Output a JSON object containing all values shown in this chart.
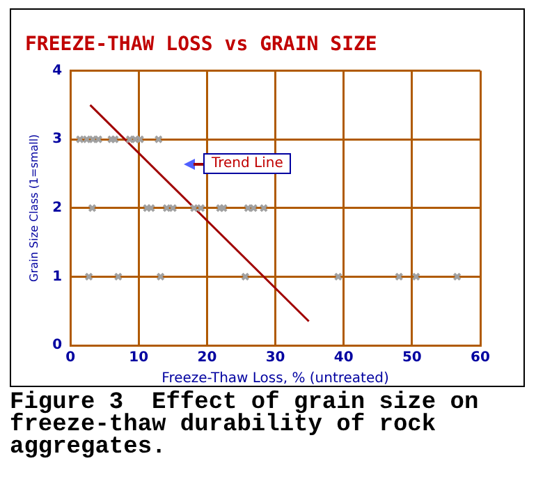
{
  "chart_data": {
    "type": "scatter",
    "title": "FREEZE-THAW LOSS vs GRAIN SIZE",
    "xlabel": "Freeze-Thaw Loss, % (untreated)",
    "ylabel": "Grain Size Class (1=small)",
    "series": [
      {
        "color": "#a0a0a0",
        "marker": "cross",
        "x": [
          1.4,
          2.4,
          3.3,
          4.1,
          6.0,
          6.5,
          8.7,
          9.5,
          10.2,
          12.9,
          3.2,
          11.2,
          11.8,
          14.1,
          15.0,
          18.1,
          19.1,
          21.9,
          22.4,
          26.0,
          26.8,
          28.3,
          2.7,
          7.0,
          13.2,
          25.6,
          39.2,
          48.1,
          50.6,
          56.6
        ],
        "values": [
          3,
          3,
          3,
          3,
          3,
          3,
          3,
          3,
          3,
          3,
          2,
          2,
          2,
          2,
          2,
          2,
          2,
          2,
          2,
          2,
          2,
          2,
          1,
          1,
          1,
          1,
          1,
          1,
          1,
          1
        ]
      },
      {
        "type": "line",
        "color": "#a00000",
        "marker": "none",
        "x": [
          2.9,
          34.9
        ],
        "values": [
          3.5,
          0.35
        ]
      }
    ],
    "xlim": [
      0,
      60
    ],
    "xticks": [
      0,
      10,
      20,
      30,
      40,
      50,
      60
    ],
    "ylim": [
      0,
      4
    ],
    "yticks": [
      0,
      1,
      2,
      3,
      4
    ],
    "grid": true,
    "legend": false,
    "annotations": [
      "Trend Line",
      "Figure 3  Effect of grain size on freeze-thaw durability of rock aggregates."
    ]
  }
}
